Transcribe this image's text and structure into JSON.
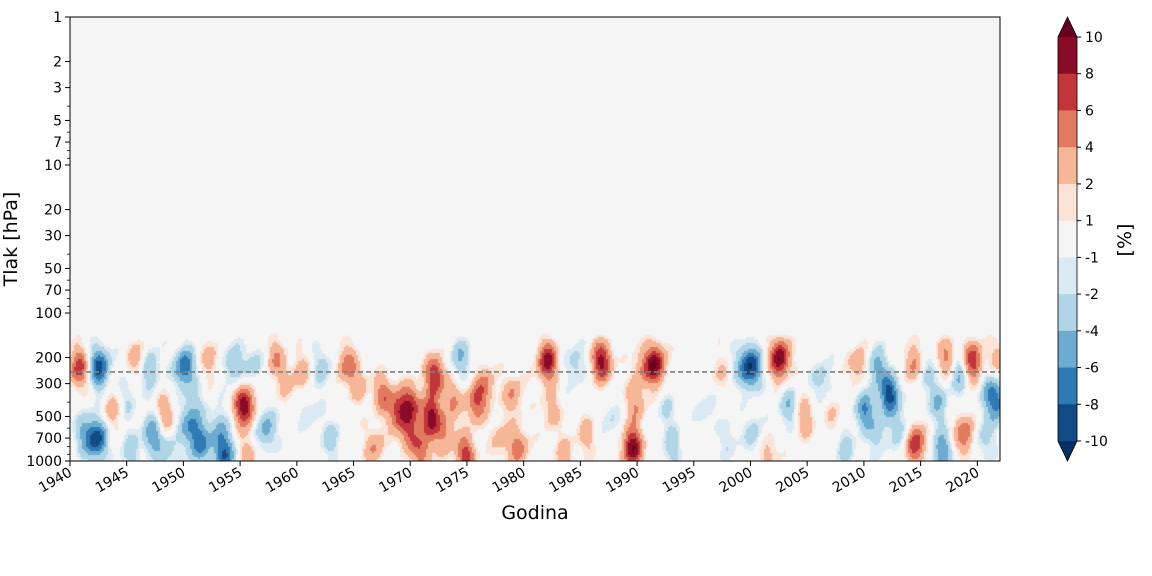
{
  "chart_data": {
    "type": "heatmap",
    "subtype": "filled-contour",
    "xlabel": "Godina",
    "ylabel": "Tlak [hPa]",
    "colorbar_label": "[%]",
    "xlim": [
      1940,
      2022
    ],
    "ylim_hpa": [
      1000,
      1
    ],
    "y_scale": "log",
    "y_inverted": true,
    "x_ticks": [
      "1940",
      "1945",
      "1950",
      "1955",
      "1960",
      "1965",
      "1970",
      "1975",
      "1980",
      "1985",
      "1990",
      "1995",
      "2000",
      "2005",
      "2010",
      "2015",
      "2020"
    ],
    "y_ticks": [
      "1",
      "2",
      "3",
      "5",
      "7",
      "10",
      "20",
      "30",
      "50",
      "70",
      "100",
      "200",
      "300",
      "500",
      "700",
      "1000"
    ],
    "reference_line_hpa": 250,
    "reference_line_style": "dashed grey",
    "data_top_hpa": 150,
    "colorbar_ticks": [
      "10",
      "8",
      "6",
      "4",
      "2",
      "1",
      "-1",
      "-2",
      "-4",
      "-6",
      "-8",
      "-10"
    ],
    "levels": [
      -10,
      -8,
      -6,
      -4,
      -2,
      -1,
      1,
      2,
      4,
      6,
      8,
      10
    ],
    "colors": [
      "#053061",
      "#134b87",
      "#2f79b5",
      "#6bacd0",
      "#b0d5e7",
      "#dbeaf2",
      "#f5f5f5",
      "#fbe3d6",
      "#f6b698",
      "#e27a60",
      "#c0363b",
      "#8a0b25",
      "#67001f"
    ],
    "anomaly_events": [
      {
        "year": 1940.7,
        "p": 230,
        "v": 7
      },
      {
        "year": 1941.2,
        "p": 650,
        "v": -4
      },
      {
        "year": 1942.5,
        "p": 230,
        "v": -9
      },
      {
        "year": 1942.3,
        "p": 700,
        "v": -9
      },
      {
        "year": 1943.6,
        "p": 450,
        "v": 3
      },
      {
        "year": 1945.0,
        "p": 380,
        "v": -2
      },
      {
        "year": 1945.2,
        "p": 850,
        "v": -3
      },
      {
        "year": 1946.0,
        "p": 200,
        "v": 4
      },
      {
        "year": 1946.9,
        "p": 230,
        "v": -5
      },
      {
        "year": 1947.2,
        "p": 650,
        "v": -6
      },
      {
        "year": 1948.3,
        "p": 480,
        "v": 4
      },
      {
        "year": 1948.6,
        "p": 850,
        "v": -3
      },
      {
        "year": 1950.0,
        "p": 230,
        "v": -8
      },
      {
        "year": 1950.4,
        "p": 550,
        "v": -5
      },
      {
        "year": 1951.0,
        "p": 400,
        "v": -2
      },
      {
        "year": 1951.3,
        "p": 750,
        "v": -7
      },
      {
        "year": 1952.3,
        "p": 200,
        "v": 3
      },
      {
        "year": 1953.0,
        "p": 600,
        "v": -4
      },
      {
        "year": 1953.5,
        "p": 900,
        "v": -8
      },
      {
        "year": 1954.3,
        "p": 220,
        "v": -4
      },
      {
        "year": 1955.3,
        "p": 420,
        "v": 10
      },
      {
        "year": 1955.6,
        "p": 900,
        "v": 3
      },
      {
        "year": 1956.2,
        "p": 220,
        "v": -3
      },
      {
        "year": 1957.2,
        "p": 600,
        "v": -5
      },
      {
        "year": 1958.0,
        "p": 200,
        "v": 4
      },
      {
        "year": 1959.0,
        "p": 300,
        "v": 2
      },
      {
        "year": 1960.3,
        "p": 250,
        "v": 3
      },
      {
        "year": 1961.0,
        "p": 450,
        "v": -2
      },
      {
        "year": 1962.2,
        "p": 230,
        "v": -3
      },
      {
        "year": 1963.0,
        "p": 700,
        "v": -3
      },
      {
        "year": 1964.3,
        "p": 220,
        "v": 5
      },
      {
        "year": 1965.4,
        "p": 300,
        "v": 3
      },
      {
        "year": 1966.8,
        "p": 800,
        "v": 4
      },
      {
        "year": 1967.5,
        "p": 350,
        "v": 5
      },
      {
        "year": 1968.9,
        "p": 450,
        "v": 7
      },
      {
        "year": 1969.8,
        "p": 650,
        "v": 5
      },
      {
        "year": 1970.0,
        "p": 400,
        "v": 6
      },
      {
        "year": 1971.0,
        "p": 850,
        "v": 5
      },
      {
        "year": 1971.7,
        "p": 500,
        "v": 9
      },
      {
        "year": 1972.1,
        "p": 260,
        "v": 8
      },
      {
        "year": 1973.0,
        "p": 650,
        "v": 4
      },
      {
        "year": 1973.6,
        "p": 380,
        "v": 4
      },
      {
        "year": 1974.3,
        "p": 200,
        "v": -4
      },
      {
        "year": 1974.8,
        "p": 900,
        "v": 7
      },
      {
        "year": 1975.7,
        "p": 400,
        "v": 6
      },
      {
        "year": 1976.6,
        "p": 300,
        "v": 4
      },
      {
        "year": 1977.9,
        "p": 700,
        "v": 3
      },
      {
        "year": 1979.0,
        "p": 350,
        "v": 4
      },
      {
        "year": 1979.5,
        "p": 800,
        "v": 5
      },
      {
        "year": 1982.0,
        "p": 210,
        "v": 9
      },
      {
        "year": 1982.3,
        "p": 450,
        "v": 3
      },
      {
        "year": 1983.5,
        "p": 900,
        "v": 3
      },
      {
        "year": 1984.5,
        "p": 220,
        "v": -3
      },
      {
        "year": 1985.5,
        "p": 650,
        "v": 3
      },
      {
        "year": 1986.8,
        "p": 210,
        "v": 9
      },
      {
        "year": 1987.5,
        "p": 500,
        "v": -2
      },
      {
        "year": 1989.5,
        "p": 800,
        "v": 10
      },
      {
        "year": 1989.8,
        "p": 400,
        "v": 4
      },
      {
        "year": 1990.2,
        "p": 230,
        "v": 3
      },
      {
        "year": 1991.5,
        "p": 220,
        "v": 10
      },
      {
        "year": 1992.5,
        "p": 450,
        "v": -2
      },
      {
        "year": 1993.0,
        "p": 800,
        "v": -3
      },
      {
        "year": 1996.0,
        "p": 450,
        "v": -2
      },
      {
        "year": 1997.2,
        "p": 250,
        "v": 2
      },
      {
        "year": 1998.0,
        "p": 700,
        "v": -2
      },
      {
        "year": 1999.2,
        "p": 220,
        "v": -3
      },
      {
        "year": 2000.0,
        "p": 230,
        "v": -9
      },
      {
        "year": 2000.3,
        "p": 650,
        "v": -3
      },
      {
        "year": 2001.5,
        "p": 850,
        "v": 3
      },
      {
        "year": 2002.5,
        "p": 200,
        "v": 10
      },
      {
        "year": 2003.3,
        "p": 430,
        "v": -4
      },
      {
        "year": 2004.6,
        "p": 500,
        "v": 4
      },
      {
        "year": 2006.2,
        "p": 280,
        "v": -3
      },
      {
        "year": 2007.3,
        "p": 500,
        "v": 2
      },
      {
        "year": 2008.2,
        "p": 800,
        "v": -3
      },
      {
        "year": 2009.5,
        "p": 220,
        "v": 4
      },
      {
        "year": 2010.0,
        "p": 450,
        "v": -6
      },
      {
        "year": 2011.0,
        "p": 230,
        "v": -5
      },
      {
        "year": 2011.2,
        "p": 650,
        "v": -3
      },
      {
        "year": 2012.2,
        "p": 350,
        "v": -9
      },
      {
        "year": 2013.2,
        "p": 600,
        "v": -3
      },
      {
        "year": 2014.3,
        "p": 220,
        "v": 5
      },
      {
        "year": 2014.5,
        "p": 750,
        "v": 8
      },
      {
        "year": 2015.3,
        "p": 250,
        "v": -3
      },
      {
        "year": 2016.4,
        "p": 400,
        "v": -4
      },
      {
        "year": 2016.8,
        "p": 850,
        "v": -6
      },
      {
        "year": 2017.3,
        "p": 200,
        "v": 5
      },
      {
        "year": 2018.3,
        "p": 250,
        "v": -5
      },
      {
        "year": 2018.8,
        "p": 650,
        "v": 6
      },
      {
        "year": 2019.5,
        "p": 210,
        "v": 8
      },
      {
        "year": 2020.5,
        "p": 700,
        "v": -3
      },
      {
        "year": 2021.0,
        "p": 330,
        "v": -4
      },
      {
        "year": 2021.7,
        "p": 400,
        "v": -6
      },
      {
        "year": 2021.8,
        "p": 200,
        "v": 3
      }
    ]
  }
}
